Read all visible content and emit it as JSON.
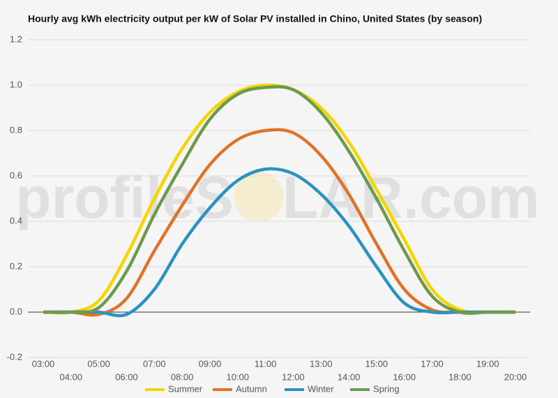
{
  "chart_data": {
    "type": "line",
    "title": "Hourly avg kWh electricity output per kW of Solar PV installed in Chino, United States (by season)",
    "watermark": [
      "profileS",
      "LAR.com"
    ],
    "categories": [
      "03:00",
      "04:00",
      "05:00",
      "06:00",
      "07:00",
      "08:00",
      "09:00",
      "10:00",
      "11:00",
      "12:00",
      "13:00",
      "14:00",
      "15:00",
      "16:00",
      "17:00",
      "18:00",
      "19:00",
      "20:00"
    ],
    "series": [
      {
        "name": "Summer",
        "color": "#f5d400",
        "values": [
          0,
          0,
          0.05,
          0.25,
          0.5,
          0.72,
          0.88,
          0.97,
          1.0,
          0.98,
          0.9,
          0.75,
          0.54,
          0.32,
          0.1,
          0.01,
          0,
          0
        ]
      },
      {
        "name": "Autumn",
        "color": "#e0732a",
        "values": [
          0,
          0,
          -0.01,
          0.06,
          0.27,
          0.47,
          0.65,
          0.76,
          0.8,
          0.79,
          0.69,
          0.52,
          0.3,
          0.1,
          0.01,
          0,
          0,
          0
        ]
      },
      {
        "name": "Winter",
        "color": "#2a93c2",
        "values": [
          0,
          0,
          0,
          -0.01,
          0.1,
          0.3,
          0.46,
          0.58,
          0.63,
          0.61,
          0.52,
          0.38,
          0.2,
          0.04,
          0,
          0,
          0,
          0
        ]
      },
      {
        "name": "Spring",
        "color": "#6c9a4f",
        "values": [
          0,
          0,
          0.02,
          0.18,
          0.43,
          0.65,
          0.85,
          0.96,
          0.99,
          0.98,
          0.88,
          0.71,
          0.5,
          0.27,
          0.07,
          0,
          0,
          0
        ]
      }
    ],
    "ylim": [
      -0.2,
      1.2
    ],
    "yticks": [
      -0.2,
      {
        "value": 0,
        "label": "0.0"
      },
      0.2,
      0.4,
      0.6,
      0.8,
      {
        "value": 1,
        "label": "1.0"
      },
      1.2
    ],
    "grid": true,
    "legend": "bottom"
  }
}
